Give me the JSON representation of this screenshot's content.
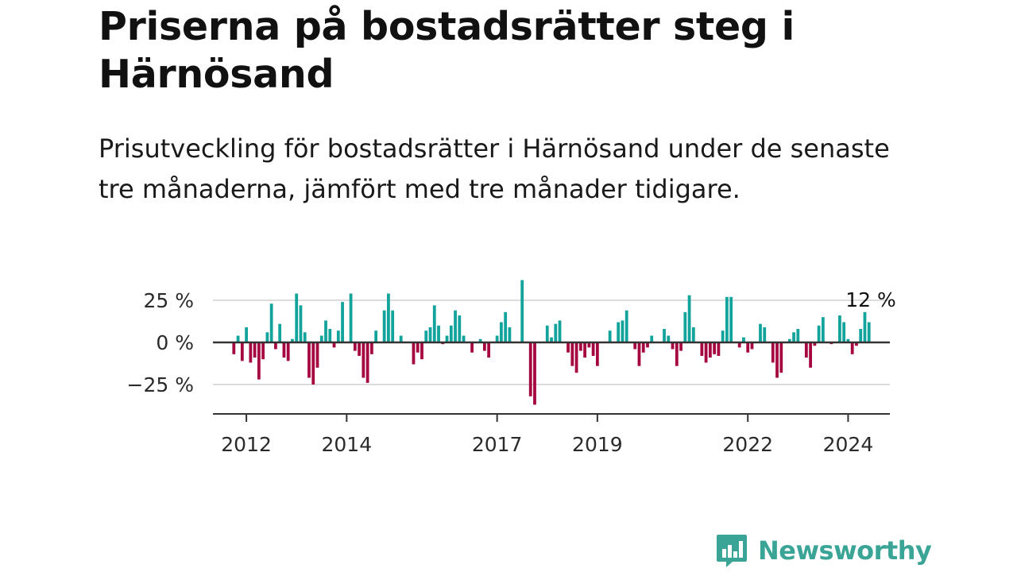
{
  "title": "Priserna på bostadsrätter steg i Härnösand",
  "subtitle": "Prisutveckling för bostadsrätter i Härnösand under de senaste tre månaderna, jämfört med tre månader tidigare.",
  "brand": {
    "name": "Newsworthy",
    "color": "#3aa596"
  },
  "colors": {
    "positive": "#12a39c",
    "negative": "#a5063f",
    "zero_line": "#333333",
    "grid": "#dcdcdc"
  },
  "chart_data": {
    "type": "bar",
    "ylim": [
      -42,
      42
    ],
    "y_ticks": [
      {
        "value": 25,
        "label": "25 %"
      },
      {
        "value": 0,
        "label": "0 %"
      },
      {
        "value": -25,
        "label": "−25 %"
      }
    ],
    "x_ticks": [
      {
        "value": 2012,
        "label": "2012"
      },
      {
        "value": 2014,
        "label": "2014"
      },
      {
        "value": 2017,
        "label": "2017"
      },
      {
        "value": 2019,
        "label": "2019"
      },
      {
        "value": 2022,
        "label": "2022"
      },
      {
        "value": 2024,
        "label": "2024"
      }
    ],
    "x_range": [
      2011.333,
      2024.833
    ],
    "last_value_label": "12 %",
    "grid": true,
    "series": [
      {
        "start_month": "2011-10",
        "values": [
          -7,
          4,
          -11,
          9,
          -12,
          -9,
          -22,
          -10,
          6,
          23,
          -4,
          11,
          -9,
          -11,
          2,
          29,
          22,
          6,
          -21,
          -25,
          -15,
          4,
          13,
          8,
          -3,
          7,
          24,
          0,
          29,
          -5,
          -8,
          -21,
          -24,
          -7,
          7,
          0,
          19,
          29,
          19,
          0,
          4,
          0,
          0,
          -13,
          -6,
          -10,
          7,
          9,
          22,
          10,
          -1,
          4,
          10,
          19,
          16,
          4,
          0,
          -6,
          0,
          2,
          -5,
          -9,
          0,
          4,
          12,
          18,
          9,
          0,
          0,
          37,
          0,
          -32,
          -37,
          0,
          0,
          10,
          3,
          11,
          13,
          0,
          -6,
          -14,
          -18,
          -5,
          -9,
          -3,
          -8,
          -14,
          0,
          0,
          7,
          0,
          12,
          13,
          19,
          0,
          -4,
          -14,
          -6,
          -3,
          4,
          0,
          0,
          8,
          4,
          -4,
          -14,
          -5,
          18,
          28,
          9,
          0,
          -8,
          -12,
          -9,
          -7,
          -8,
          7,
          27,
          27,
          0,
          -3,
          3,
          -6,
          -4,
          0,
          11,
          9,
          0,
          -12,
          -21,
          -18,
          0,
          2,
          6,
          8,
          0,
          -9,
          -15,
          -2,
          10,
          15,
          0,
          -1,
          0,
          16,
          12,
          2,
          -7,
          -2,
          8,
          18,
          12
        ]
      }
    ]
  }
}
